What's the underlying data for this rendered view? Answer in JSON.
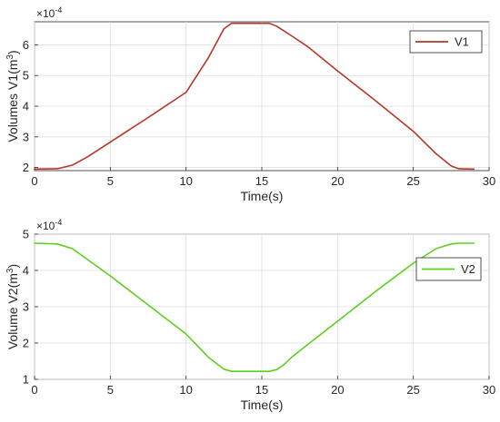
{
  "chart_data": [
    {
      "type": "line",
      "title": "",
      "xlabel": "Time(s)",
      "ylabel_main": "Volumes V1(m",
      "ylabel_sup": "3",
      "ylabel_close": ")",
      "y_exponent_base": "×10",
      "y_exponent_power": "-4",
      "xlim": [
        0,
        30
      ],
      "ylim": [
        1.9,
        6.75
      ],
      "xticks": [
        0,
        5,
        10,
        15,
        20,
        25,
        30
      ],
      "yticks": [
        2,
        3,
        4,
        5,
        6
      ],
      "grid": true,
      "legend_position": "top-right",
      "series": [
        {
          "name": "V1",
          "color": "#b5372a",
          "x": [
            0,
            1.5,
            2.5,
            3.5,
            5,
            7.5,
            10,
            11.5,
            12.5,
            13,
            15.5,
            16,
            17,
            18,
            20,
            22.5,
            25,
            26.5,
            27.5,
            28,
            29
          ],
          "y": [
            1.95,
            1.96,
            2.08,
            2.35,
            2.83,
            3.63,
            4.45,
            5.6,
            6.52,
            6.7,
            6.7,
            6.6,
            6.28,
            5.95,
            5.15,
            4.18,
            3.18,
            2.45,
            2.05,
            1.96,
            1.95
          ]
        }
      ]
    },
    {
      "type": "line",
      "title": "",
      "xlabel": "Time(s)",
      "ylabel_main": "Volume V2(m",
      "ylabel_sup": "3",
      "ylabel_close": ")",
      "y_exponent_base": "×10",
      "y_exponent_power": "-4",
      "xlim": [
        0,
        30
      ],
      "ylim": [
        1,
        5
      ],
      "xticks": [
        0,
        5,
        10,
        15,
        20,
        25,
        30
      ],
      "yticks": [
        1,
        2,
        3,
        4,
        5
      ],
      "grid": true,
      "legend_position": "top-right",
      "series": [
        {
          "name": "V2",
          "color": "#5ccf1e",
          "x": [
            0,
            1.5,
            2.5,
            3.5,
            5,
            7.5,
            10,
            11.5,
            12.5,
            13,
            15.5,
            16,
            16.5,
            17,
            18,
            20,
            22.5,
            25,
            26.5,
            27.5,
            28,
            29
          ],
          "y": [
            4.75,
            4.73,
            4.6,
            4.3,
            3.85,
            3.05,
            2.25,
            1.6,
            1.28,
            1.22,
            1.22,
            1.27,
            1.42,
            1.62,
            1.95,
            2.6,
            3.42,
            4.2,
            4.6,
            4.73,
            4.75,
            4.75
          ]
        }
      ]
    }
  ]
}
